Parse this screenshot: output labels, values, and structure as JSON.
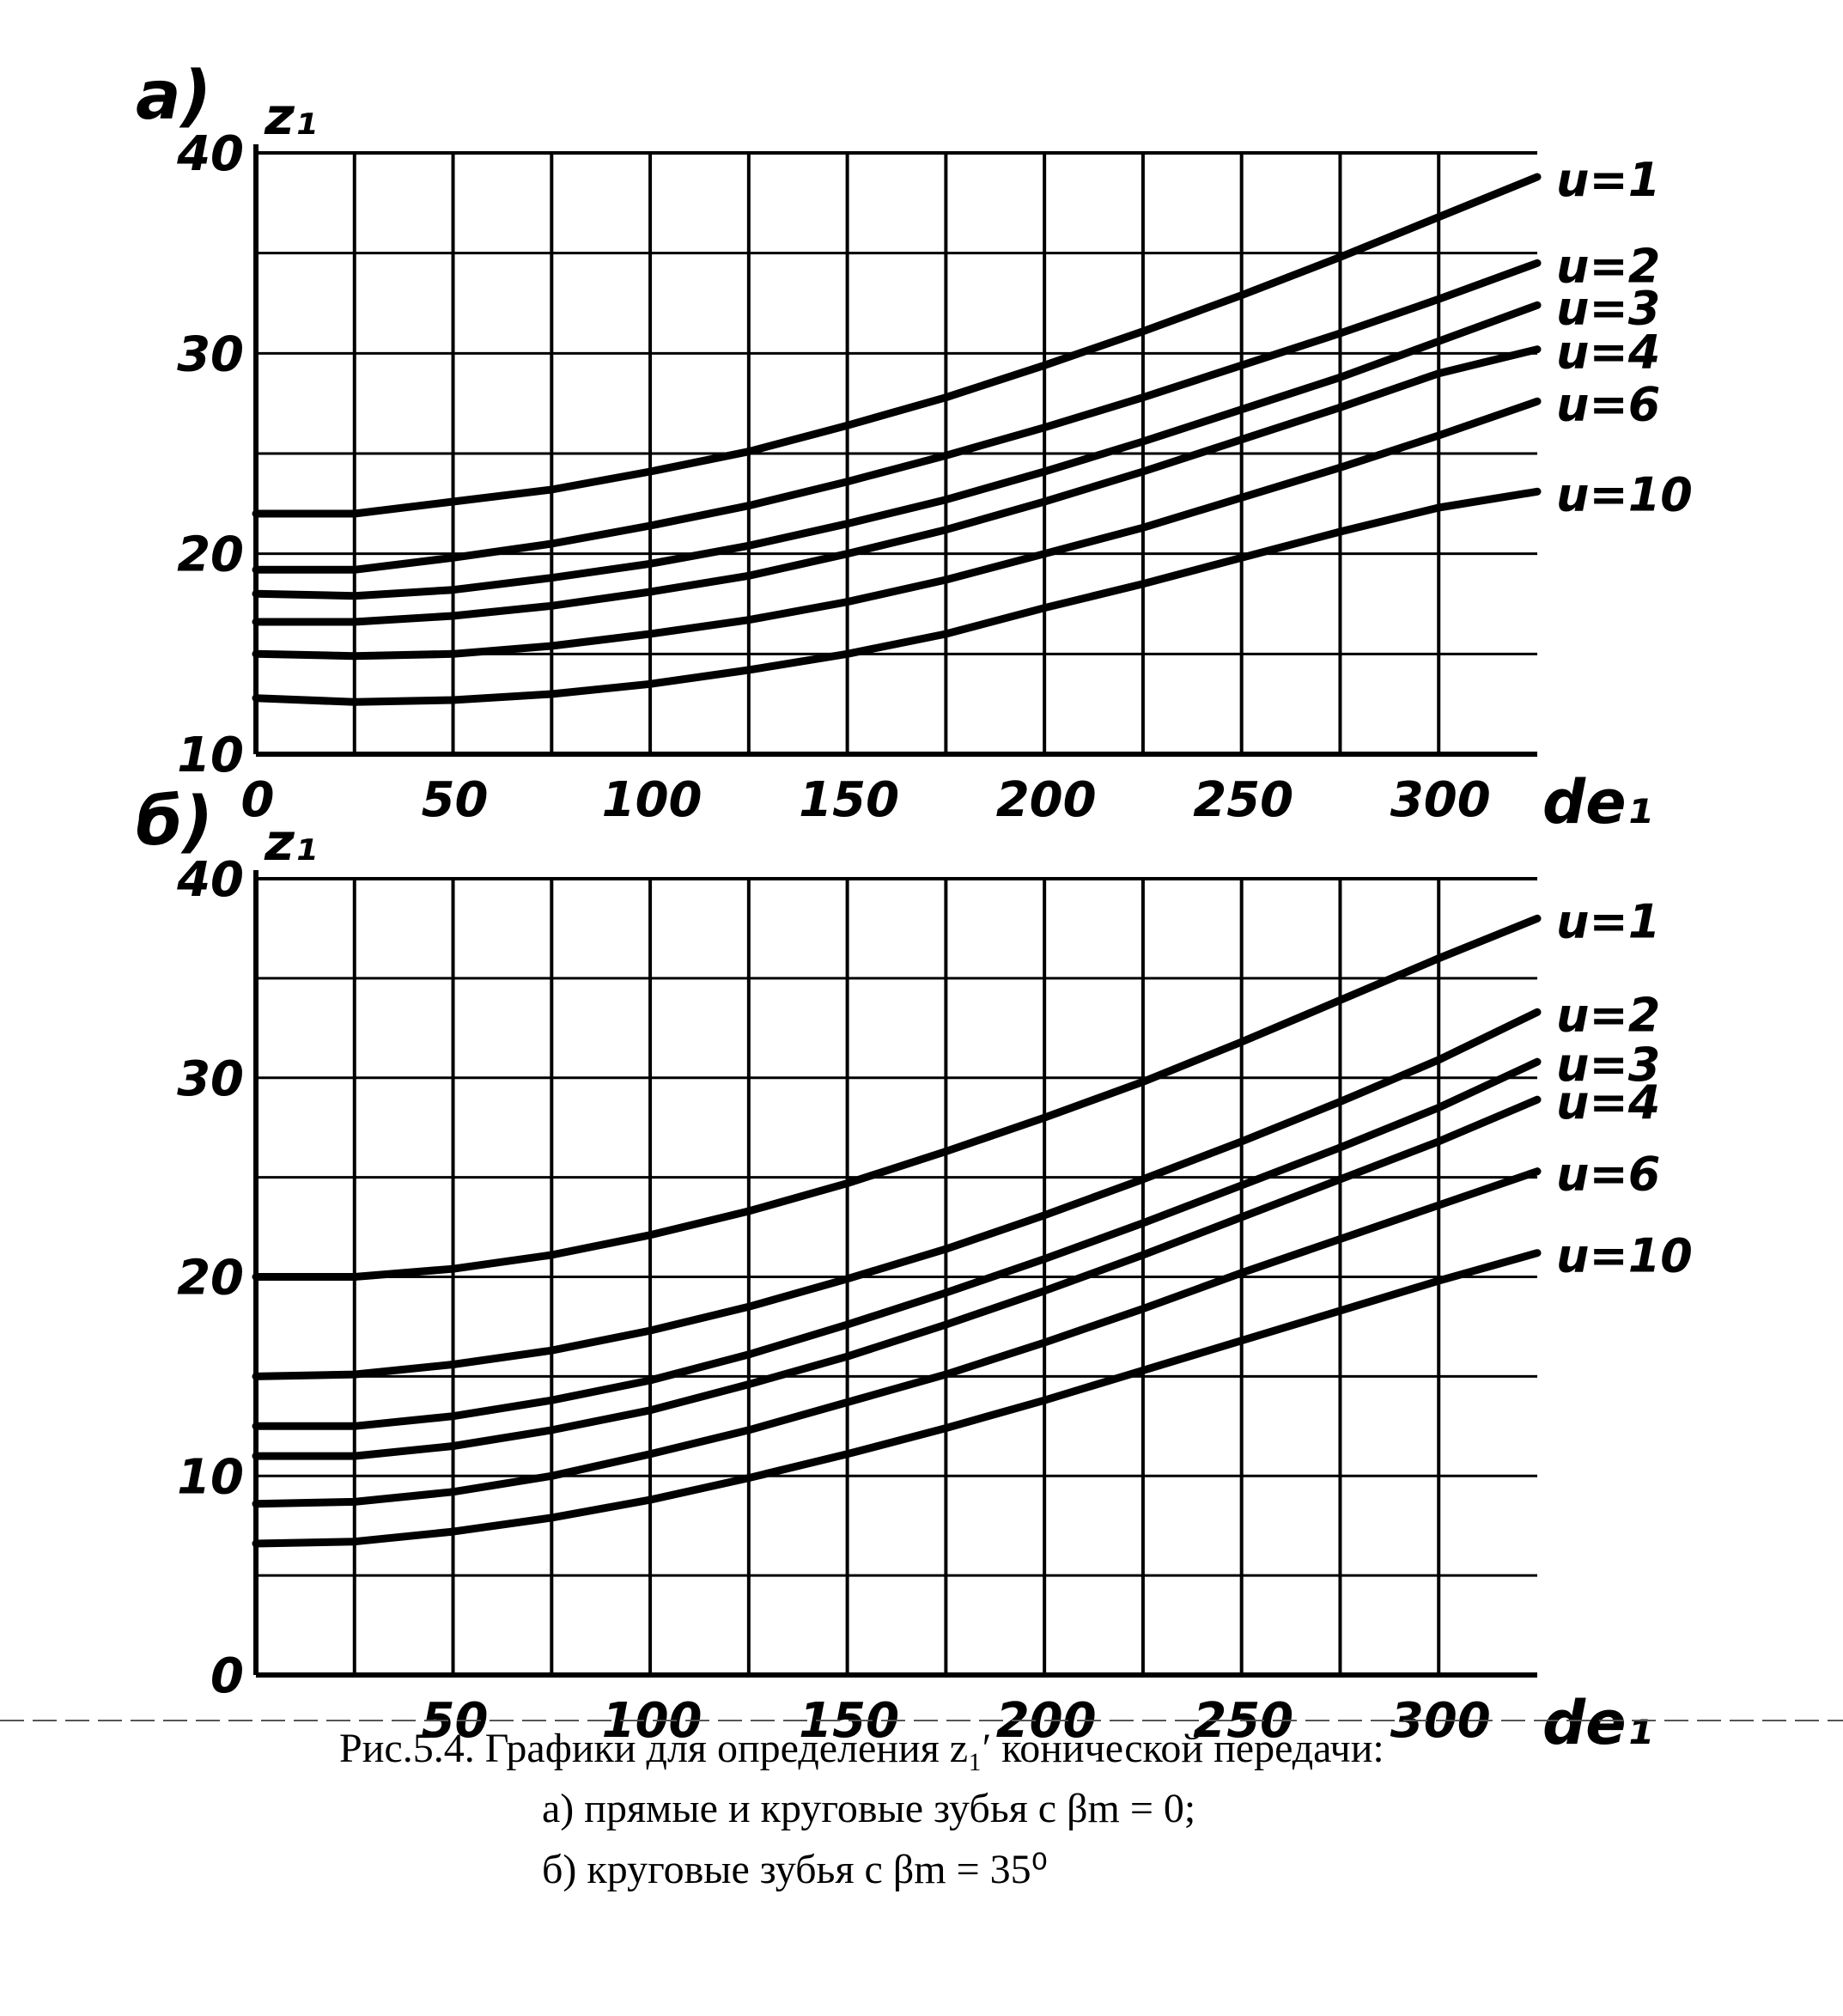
{
  "caption": {
    "line1": "Рис.5.4. Графики для определения z₁′ конической передачи:",
    "line2": "а) прямые и круговые зубья с βm = 0;",
    "line3": "б) круговые зубья с βm = 35⁰"
  },
  "chart_data": [
    {
      "type": "line",
      "panel_label": "а)",
      "ylabel": "z₁",
      "xlabel": "de₁",
      "xlim": [
        0,
        325
      ],
      "ylim": [
        10,
        40
      ],
      "grid": true,
      "x_tick_labels": [
        "0",
        "50",
        "100",
        "150",
        "200",
        "250",
        "300"
      ],
      "y_tick_labels": [
        "10",
        "20",
        "30",
        "40"
      ],
      "series": [
        {
          "name": "u=1",
          "x": [
            0,
            25,
            50,
            75,
            100,
            125,
            150,
            175,
            200,
            225,
            250,
            275,
            300,
            325
          ],
          "y": [
            22,
            22,
            22.6,
            23.2,
            24.1,
            25.1,
            26.4,
            27.8,
            29.4,
            31.1,
            32.9,
            34.8,
            36.8,
            38.8
          ]
        },
        {
          "name": "u=2",
          "x": [
            0,
            25,
            50,
            75,
            100,
            125,
            150,
            175,
            200,
            225,
            250,
            275,
            300,
            325
          ],
          "y": [
            19.2,
            19.2,
            19.8,
            20.5,
            21.4,
            22.4,
            23.6,
            24.9,
            26.3,
            27.8,
            29.4,
            31,
            32.7,
            34.5
          ]
        },
        {
          "name": "u=3",
          "x": [
            0,
            25,
            50,
            75,
            100,
            125,
            150,
            175,
            200,
            225,
            250,
            275,
            300,
            325
          ],
          "y": [
            18,
            17.9,
            18.2,
            18.8,
            19.5,
            20.4,
            21.5,
            22.7,
            24.1,
            25.6,
            27.2,
            28.8,
            30.6,
            32.4
          ]
        },
        {
          "name": "u=4",
          "x": [
            0,
            25,
            50,
            75,
            100,
            125,
            150,
            175,
            200,
            225,
            250,
            275,
            300,
            325
          ],
          "y": [
            16.6,
            16.6,
            16.9,
            17.4,
            18.1,
            18.9,
            20,
            21.2,
            22.6,
            24.1,
            25.7,
            27.3,
            29,
            30.2
          ]
        },
        {
          "name": "u=6",
          "x": [
            0,
            25,
            50,
            75,
            100,
            125,
            150,
            175,
            200,
            225,
            250,
            275,
            300,
            325
          ],
          "y": [
            15,
            14.9,
            15,
            15.4,
            16,
            16.7,
            17.6,
            18.7,
            20,
            21.3,
            22.8,
            24.3,
            25.9,
            27.6
          ]
        },
        {
          "name": "u=10",
          "x": [
            0,
            25,
            50,
            75,
            100,
            125,
            150,
            175,
            200,
            225,
            250,
            275,
            300,
            325
          ],
          "y": [
            12.8,
            12.6,
            12.7,
            13,
            13.5,
            14.2,
            15,
            16,
            17.3,
            18.5,
            19.8,
            21.1,
            22.3,
            23.1
          ]
        }
      ]
    },
    {
      "type": "line",
      "panel_label": "б)",
      "ylabel": "z₁",
      "xlabel": "de₁",
      "xlim": [
        0,
        325
      ],
      "ylim": [
        0,
        40
      ],
      "grid": true,
      "x_tick_labels": [
        "50",
        "100",
        "150",
        "200",
        "250",
        "300"
      ],
      "y_tick_labels": [
        "0",
        "10",
        "20",
        "30",
        "40"
      ],
      "series": [
        {
          "name": "u=1",
          "x": [
            0,
            25,
            50,
            75,
            100,
            125,
            150,
            175,
            200,
            225,
            250,
            275,
            300,
            325
          ],
          "y": [
            20,
            20,
            20.4,
            21.1,
            22.1,
            23.3,
            24.7,
            26.3,
            28,
            29.8,
            31.8,
            33.9,
            36,
            38
          ]
        },
        {
          "name": "u=2",
          "x": [
            0,
            25,
            50,
            75,
            100,
            125,
            150,
            175,
            200,
            225,
            250,
            275,
            300,
            325
          ],
          "y": [
            15,
            15.1,
            15.6,
            16.3,
            17.3,
            18.5,
            19.9,
            21.4,
            23.1,
            24.9,
            26.8,
            28.8,
            30.9,
            33.3
          ]
        },
        {
          "name": "u=3",
          "x": [
            0,
            25,
            50,
            75,
            100,
            125,
            150,
            175,
            200,
            225,
            250,
            275,
            300,
            325
          ],
          "y": [
            12.5,
            12.5,
            13,
            13.8,
            14.8,
            16.1,
            17.6,
            19.2,
            20.9,
            22.7,
            24.6,
            26.5,
            28.5,
            30.8
          ]
        },
        {
          "name": "u=4",
          "x": [
            0,
            25,
            50,
            75,
            100,
            125,
            150,
            175,
            200,
            225,
            250,
            275,
            300,
            325
          ],
          "y": [
            11,
            11,
            11.5,
            12.3,
            13.3,
            14.6,
            16,
            17.6,
            19.3,
            21.1,
            23,
            24.9,
            26.8,
            28.9
          ]
        },
        {
          "name": "u=6",
          "x": [
            0,
            25,
            50,
            75,
            100,
            125,
            150,
            175,
            200,
            225,
            250,
            275,
            300,
            325
          ],
          "y": [
            8.6,
            8.7,
            9.2,
            10,
            11.1,
            12.3,
            13.7,
            15.1,
            16.7,
            18.4,
            20.2,
            21.9,
            23.6,
            25.3
          ]
        },
        {
          "name": "u=10",
          "x": [
            0,
            25,
            50,
            75,
            100,
            125,
            150,
            175,
            200,
            225,
            250,
            275,
            300,
            325
          ],
          "y": [
            6.6,
            6.7,
            7.2,
            7.9,
            8.8,
            9.9,
            11.1,
            12.4,
            13.8,
            15.3,
            16.8,
            18.3,
            19.8,
            21.2
          ]
        }
      ]
    }
  ]
}
